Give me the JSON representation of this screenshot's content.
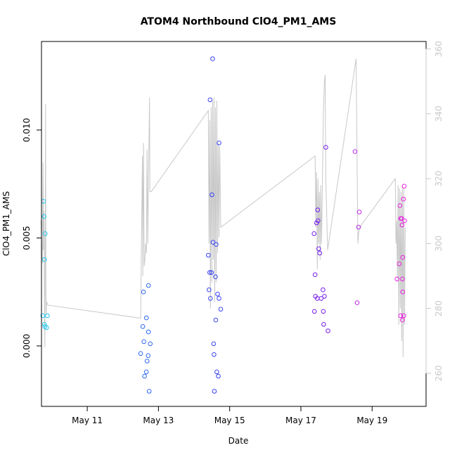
{
  "chart_data": {
    "type": "scatter",
    "title": "ATOM4 Northbound ClO4_PM1_AMS",
    "xlabel": "Date",
    "ylabel": "ClO4_PM1_AMS",
    "x_ticks": [
      {
        "label": "May 11",
        "day": 11
      },
      {
        "label": "May 13",
        "day": 13
      },
      {
        "label": "May 15",
        "day": 15
      },
      {
        "label": "May 17",
        "day": 17
      },
      {
        "label": "May 19",
        "day": 19
      }
    ],
    "xlim": [
      9.715,
      20.515
    ],
    "ylim": [
      -0.0028,
      0.0141
    ],
    "y_ticks": [
      {
        "label": "0.000",
        "value": 0.0
      },
      {
        "label": "0.005",
        "value": 0.005
      },
      {
        "label": "0.010",
        "value": 0.01
      }
    ],
    "right_axis": {
      "label": "",
      "ylim": [
        249.8,
        362.3
      ],
      "ticks": [
        {
          "label": "260",
          "value": 260
        },
        {
          "label": "280",
          "value": 280
        },
        {
          "label": "300",
          "value": 300
        },
        {
          "label": "320",
          "value": 320
        },
        {
          "label": "340",
          "value": 340
        },
        {
          "label": "360",
          "value": 360
        }
      ],
      "line_color": "#c8c8c8"
    },
    "point_color_scale": [
      "#22c8ee",
      "#3050f0",
      "#5a10f0",
      "#a030f0",
      "#e820e0"
    ],
    "points": [
      {
        "x": 9.75,
        "y": 0.0014,
        "c": 0.0
      },
      {
        "x": 9.77,
        "y": 0.0067,
        "c": 0.0
      },
      {
        "x": 9.79,
        "y": 0.006,
        "c": 0.0
      },
      {
        "x": 9.8,
        "y": 0.004,
        "c": 0.0
      },
      {
        "x": 9.8,
        "y": 0.001,
        "c": 0.0
      },
      {
        "x": 9.81,
        "y": 0.0009,
        "c": 0.0
      },
      {
        "x": 9.82,
        "y": 0.0052,
        "c": 0.01
      },
      {
        "x": 9.86,
        "y": 0.00085,
        "c": 0.01
      },
      {
        "x": 9.88,
        "y": 0.0014,
        "c": 0.01
      },
      {
        "x": 12.5,
        "y": -0.00035,
        "c": 0.2
      },
      {
        "x": 12.56,
        "y": 0.0009,
        "c": 0.2
      },
      {
        "x": 12.58,
        "y": 0.0025,
        "c": 0.2
      },
      {
        "x": 12.59,
        "y": 0.0002,
        "c": 0.2
      },
      {
        "x": 12.61,
        "y": -0.0014,
        "c": 0.2
      },
      {
        "x": 12.66,
        "y": 0.0013,
        "c": 0.2
      },
      {
        "x": 12.66,
        "y": -0.0012,
        "c": 0.2
      },
      {
        "x": 12.68,
        "y": -0.0007,
        "c": 0.2
      },
      {
        "x": 12.71,
        "y": -0.00045,
        "c": 0.2
      },
      {
        "x": 12.72,
        "y": 0.0028,
        "c": 0.2
      },
      {
        "x": 12.72,
        "y": 0.00065,
        "c": 0.2
      },
      {
        "x": 12.74,
        "y": -0.0021,
        "c": 0.2
      },
      {
        "x": 12.77,
        "y": 0.0001,
        "c": 0.2
      },
      {
        "x": 14.4,
        "y": 0.0042,
        "c": 0.3
      },
      {
        "x": 14.42,
        "y": 0.0026,
        "c": 0.3
      },
      {
        "x": 14.44,
        "y": 0.0034,
        "c": 0.3
      },
      {
        "x": 14.45,
        "y": 0.0114,
        "c": 0.3
      },
      {
        "x": 14.46,
        "y": 0.0022,
        "c": 0.3
      },
      {
        "x": 14.49,
        "y": 0.0034,
        "c": 0.3
      },
      {
        "x": 14.5,
        "y": 0.007,
        "c": 0.3
      },
      {
        "x": 14.52,
        "y": 0.0133,
        "c": 0.3
      },
      {
        "x": 14.53,
        "y": 0.0048,
        "c": 0.3
      },
      {
        "x": 14.55,
        "y": 0.0001,
        "c": 0.3
      },
      {
        "x": 14.56,
        "y": -0.0004,
        "c": 0.3
      },
      {
        "x": 14.57,
        "y": -0.0021,
        "c": 0.3
      },
      {
        "x": 14.6,
        "y": 0.0032,
        "c": 0.3
      },
      {
        "x": 14.61,
        "y": 0.0012,
        "c": 0.3
      },
      {
        "x": 14.62,
        "y": 0.0047,
        "c": 0.3
      },
      {
        "x": 14.64,
        "y": -0.0012,
        "c": 0.3
      },
      {
        "x": 14.66,
        "y": 0.0024,
        "c": 0.3
      },
      {
        "x": 14.68,
        "y": -0.0014,
        "c": 0.3
      },
      {
        "x": 14.7,
        "y": 0.0094,
        "c": 0.3
      },
      {
        "x": 14.7,
        "y": 0.0022,
        "c": 0.3
      },
      {
        "x": 14.75,
        "y": 0.0017,
        "c": 0.3
      },
      {
        "x": 17.37,
        "y": 0.0052,
        "c": 0.6
      },
      {
        "x": 17.38,
        "y": 0.0016,
        "c": 0.6
      },
      {
        "x": 17.4,
        "y": 0.0033,
        "c": 0.6
      },
      {
        "x": 17.41,
        "y": 0.0023,
        "c": 0.6
      },
      {
        "x": 17.44,
        "y": 0.0057,
        "c": 0.6
      },
      {
        "x": 17.46,
        "y": 0.0022,
        "c": 0.6
      },
      {
        "x": 17.47,
        "y": 0.0063,
        "c": 0.6
      },
      {
        "x": 17.48,
        "y": 0.0058,
        "c": 0.6
      },
      {
        "x": 17.5,
        "y": 0.0045,
        "c": 0.6
      },
      {
        "x": 17.53,
        "y": 0.0043,
        "c": 0.6
      },
      {
        "x": 17.57,
        "y": 0.0022,
        "c": 0.6
      },
      {
        "x": 17.62,
        "y": 0.0026,
        "c": 0.6
      },
      {
        "x": 17.63,
        "y": 0.0016,
        "c": 0.6
      },
      {
        "x": 17.64,
        "y": 0.001,
        "c": 0.6
      },
      {
        "x": 17.66,
        "y": 0.0023,
        "c": 0.6
      },
      {
        "x": 17.7,
        "y": 0.0092,
        "c": 0.6
      },
      {
        "x": 17.76,
        "y": 0.0007,
        "c": 0.6
      },
      {
        "x": 18.52,
        "y": 0.009,
        "c": 0.85
      },
      {
        "x": 18.58,
        "y": 0.002,
        "c": 0.85
      },
      {
        "x": 18.62,
        "y": 0.0055,
        "c": 0.85
      },
      {
        "x": 18.64,
        "y": 0.0062,
        "c": 0.85
      },
      {
        "x": 19.7,
        "y": 0.0031,
        "c": 1.0
      },
      {
        "x": 19.76,
        "y": 0.0038,
        "c": 1.0
      },
      {
        "x": 19.78,
        "y": 0.0065,
        "c": 1.0
      },
      {
        "x": 19.8,
        "y": 0.0059,
        "c": 1.0
      },
      {
        "x": 19.8,
        "y": 0.0014,
        "c": 1.0
      },
      {
        "x": 19.83,
        "y": 0.0059,
        "c": 1.0
      },
      {
        "x": 19.84,
        "y": 0.0056,
        "c": 1.0
      },
      {
        "x": 19.85,
        "y": 0.0031,
        "c": 1.0
      },
      {
        "x": 19.85,
        "y": 0.0012,
        "c": 1.0
      },
      {
        "x": 19.86,
        "y": 0.0041,
        "c": 1.0
      },
      {
        "x": 19.86,
        "y": 0.0025,
        "c": 1.0
      },
      {
        "x": 19.88,
        "y": 0.0068,
        "c": 1.0
      },
      {
        "x": 19.89,
        "y": 0.0014,
        "c": 1.0
      },
      {
        "x": 19.9,
        "y": 0.0074,
        "c": 1.0
      },
      {
        "x": 19.91,
        "y": 0.0058,
        "c": 1.0
      }
    ],
    "line_series": [
      [
        9.7,
        307
      ],
      [
        9.74,
        294
      ],
      [
        9.76,
        325
      ],
      [
        9.77,
        298
      ],
      [
        9.78,
        310
      ],
      [
        9.79,
        300
      ],
      [
        9.8,
        280
      ],
      [
        9.81,
        268
      ],
      [
        9.82,
        305
      ],
      [
        9.83,
        343
      ],
      [
        9.84,
        285
      ],
      [
        9.85,
        278
      ],
      [
        9.86,
        282
      ],
      [
        9.9,
        281
      ],
      [
        12.5,
        277
      ],
      [
        12.52,
        300
      ],
      [
        12.55,
        327
      ],
      [
        12.56,
        290
      ],
      [
        12.58,
        331
      ],
      [
        12.6,
        293
      ],
      [
        12.62,
        295
      ],
      [
        12.64,
        300
      ],
      [
        12.66,
        297
      ],
      [
        12.68,
        329
      ],
      [
        12.7,
        300
      ],
      [
        12.72,
        320
      ],
      [
        12.75,
        345
      ],
      [
        12.76,
        316
      ],
      [
        12.8,
        316
      ],
      [
        14.4,
        341
      ],
      [
        14.42,
        300
      ],
      [
        14.44,
        338
      ],
      [
        14.46,
        280
      ],
      [
        14.48,
        342
      ],
      [
        14.5,
        288
      ],
      [
        14.52,
        344
      ],
      [
        14.54,
        295
      ],
      [
        14.56,
        345
      ],
      [
        14.58,
        282
      ],
      [
        14.6,
        342
      ],
      [
        14.62,
        288
      ],
      [
        14.64,
        344
      ],
      [
        14.66,
        297
      ],
      [
        14.68,
        331
      ],
      [
        14.7,
        302
      ],
      [
        14.72,
        330
      ],
      [
        14.75,
        305
      ],
      [
        17.4,
        327
      ],
      [
        17.42,
        305
      ],
      [
        17.44,
        322
      ],
      [
        17.46,
        292
      ],
      [
        17.48,
        320
      ],
      [
        17.5,
        300
      ],
      [
        17.52,
        316
      ],
      [
        17.54,
        295
      ],
      [
        17.56,
        318
      ],
      [
        17.58,
        300
      ],
      [
        17.6,
        315
      ],
      [
        17.63,
        340
      ],
      [
        17.66,
        350
      ],
      [
        17.68,
        352
      ],
      [
        17.7,
        320
      ],
      [
        17.75,
        298
      ],
      [
        18.55,
        357
      ],
      [
        18.6,
        300
      ],
      [
        18.62,
        303
      ],
      [
        18.65,
        305
      ],
      [
        19.65,
        320
      ],
      [
        19.67,
        300
      ],
      [
        19.69,
        307
      ],
      [
        19.71,
        289
      ],
      [
        19.73,
        318
      ],
      [
        19.75,
        275
      ],
      [
        19.77,
        317
      ],
      [
        19.79,
        280
      ],
      [
        19.81,
        316
      ],
      [
        19.83,
        270
      ],
      [
        19.85,
        318
      ],
      [
        19.87,
        265
      ],
      [
        19.89,
        317
      ],
      [
        19.91,
        275
      ],
      [
        19.93,
        305
      ]
    ]
  }
}
